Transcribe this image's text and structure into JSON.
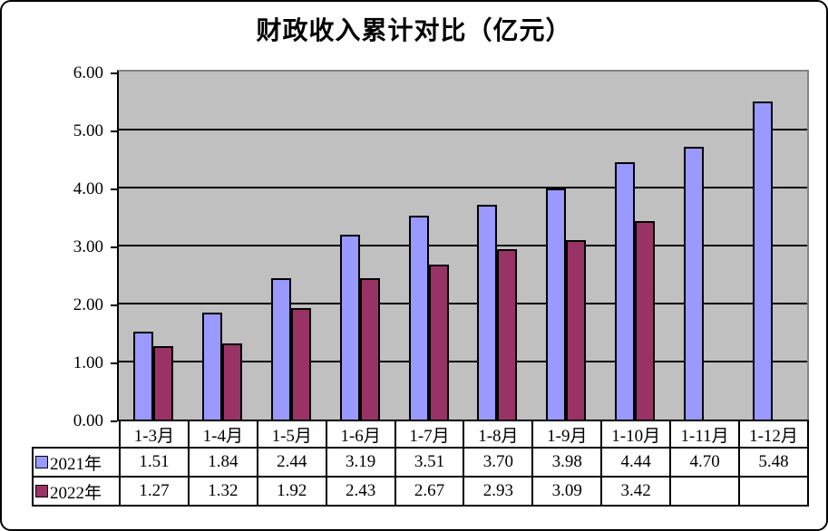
{
  "window": {
    "background": "#FFFFFF",
    "border_color": "#000000"
  },
  "chart_data": {
    "type": "bar",
    "title": "财政收入累计对比（亿元）",
    "categories": [
      "1-3月",
      "1-4月",
      "1-5月",
      "1-6月",
      "1-7月",
      "1-8月",
      "1-9月",
      "1-10月",
      "1-11月",
      "1-12月"
    ],
    "series": [
      {
        "name": "2021年",
        "color": "#9999FF",
        "values": [
          1.51,
          1.84,
          2.44,
          3.19,
          3.51,
          3.7,
          3.98,
          4.44,
          4.7,
          5.48
        ],
        "display": [
          "1.51",
          "1.84",
          "2.44",
          "3.19",
          "3.51",
          "3.70",
          "3.98",
          "4.44",
          "4.70",
          "5.48"
        ]
      },
      {
        "name": "2022年",
        "color": "#993366",
        "values": [
          1.27,
          1.32,
          1.92,
          2.43,
          2.67,
          2.93,
          3.09,
          3.42,
          null,
          null
        ],
        "display": [
          "1.27",
          "1.32",
          "1.92",
          "2.43",
          "2.67",
          "2.93",
          "3.09",
          "3.42",
          "",
          ""
        ]
      }
    ],
    "xlabel": "",
    "ylabel": "",
    "ylim": [
      0,
      6
    ],
    "ytick_step": 1,
    "ytick_labels": [
      "0.00",
      "1.00",
      "2.00",
      "3.00",
      "4.00",
      "5.00",
      "6.00"
    ],
    "grid": true,
    "legend_position": "bottom-table-left",
    "plot_bg": "#C0C0C0",
    "plot_border": "#848484",
    "gridline_color": "#000000",
    "bar_border_color": "#000000"
  }
}
